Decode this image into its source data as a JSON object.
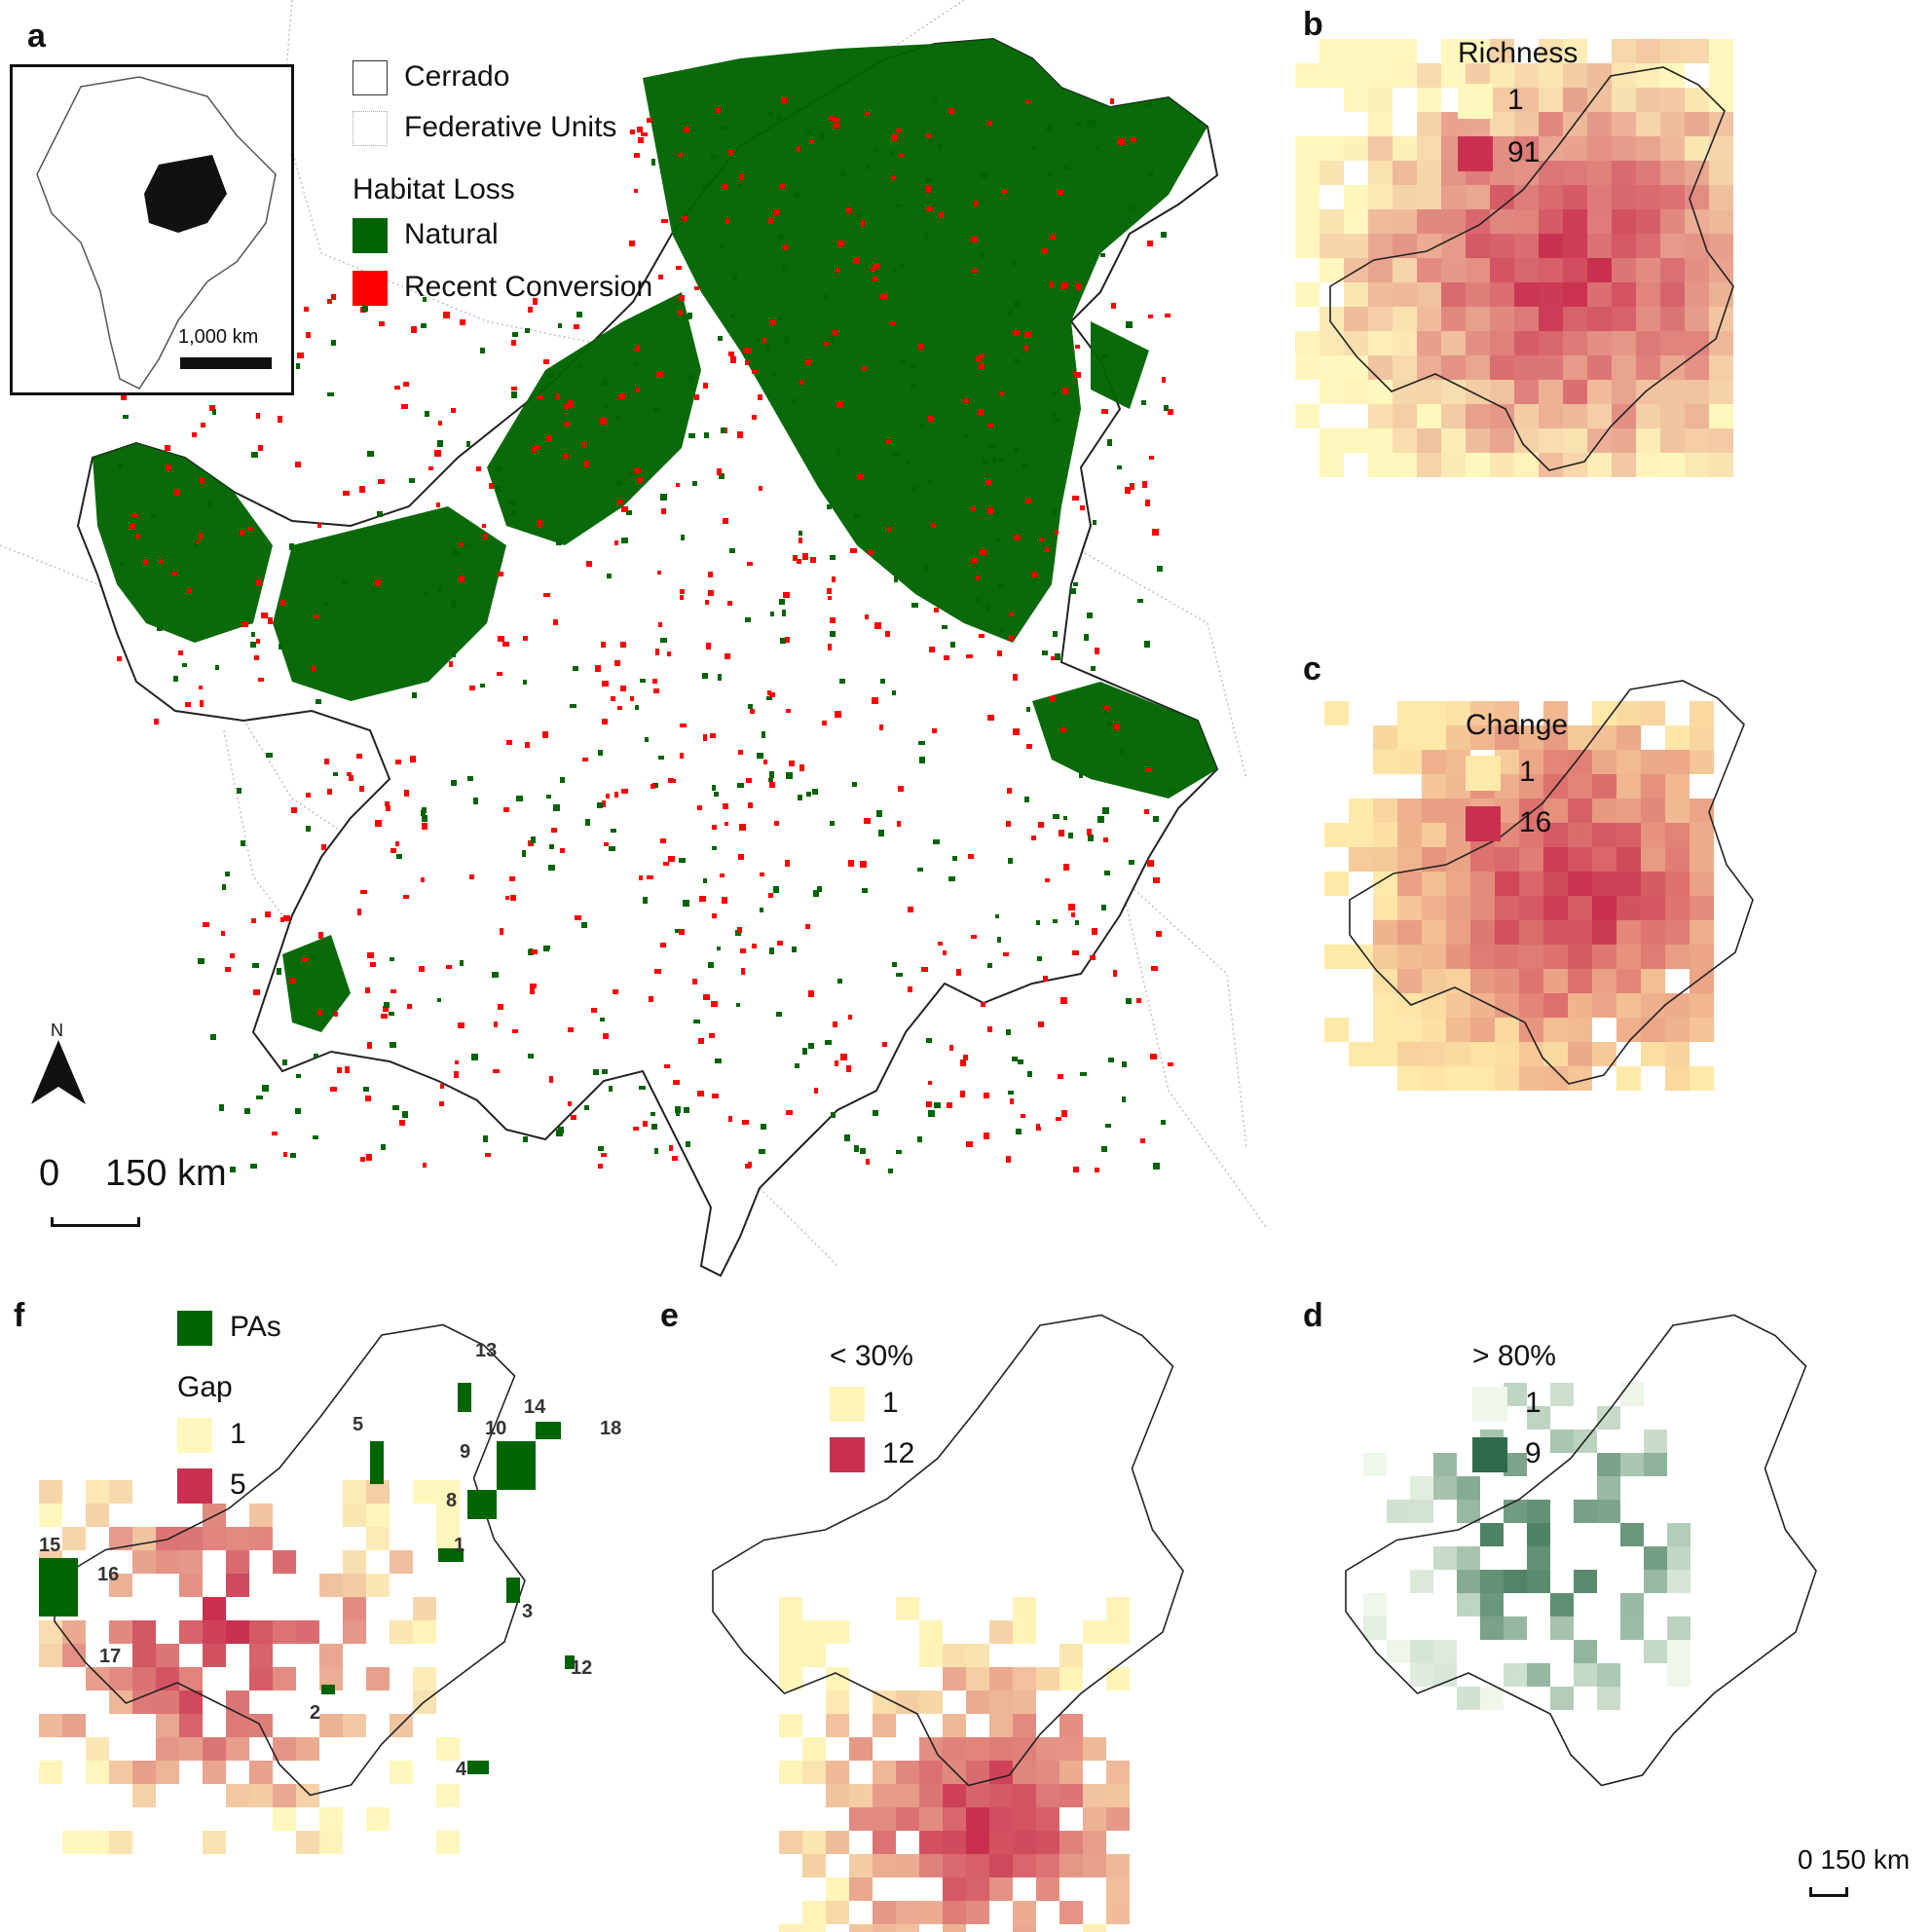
{
  "panels": {
    "a": {
      "letter": "a",
      "legend": {
        "cerrado": "Cerrado",
        "federative_units": "Federative Units",
        "habitat_loss_title": "Habitat Loss",
        "natural": "Natural",
        "recent_conversion": "Recent Conversion"
      },
      "inset_scale": "1,000 km",
      "north": "N",
      "scale": {
        "zero": "0",
        "label": "150 km"
      },
      "colors": {
        "natural": "#006400",
        "conversion": "#ff0000"
      }
    },
    "b": {
      "letter": "b",
      "legend_title": "Richness",
      "min_label": "1",
      "max_label": "91",
      "colors": {
        "low": "#fff7bc",
        "mid": "#f4a261",
        "high": "#c9304f"
      }
    },
    "c": {
      "letter": "c",
      "legend_title": "Change",
      "min_label": "1",
      "max_label": "16",
      "colors": {
        "low": "#ffe9a8",
        "mid": "#f29a60",
        "high": "#c9304f"
      }
    },
    "d": {
      "letter": "d",
      "legend_title": "> 80%",
      "min_label": "1",
      "max_label": "9",
      "scale": "0 150 km",
      "colors": {
        "low": "#eef7ea",
        "high": "#2e6b4a"
      }
    },
    "e": {
      "letter": "e",
      "legend_title": "< 30%",
      "min_label": "1",
      "max_label": "12",
      "colors": {
        "low": "#fff4b8",
        "high": "#c9304f"
      }
    },
    "f": {
      "letter": "f",
      "pas_label": "PAs",
      "gap_title": "Gap",
      "min_label": "1",
      "max_label": "5",
      "pa_numbers": [
        "13",
        "14",
        "10",
        "18",
        "5",
        "9",
        "8",
        "1",
        "3",
        "15",
        "16",
        "17",
        "2",
        "12",
        "4"
      ],
      "colors": {
        "pa": "#006400",
        "low": "#fff7bc",
        "high": "#c9304f"
      }
    }
  }
}
